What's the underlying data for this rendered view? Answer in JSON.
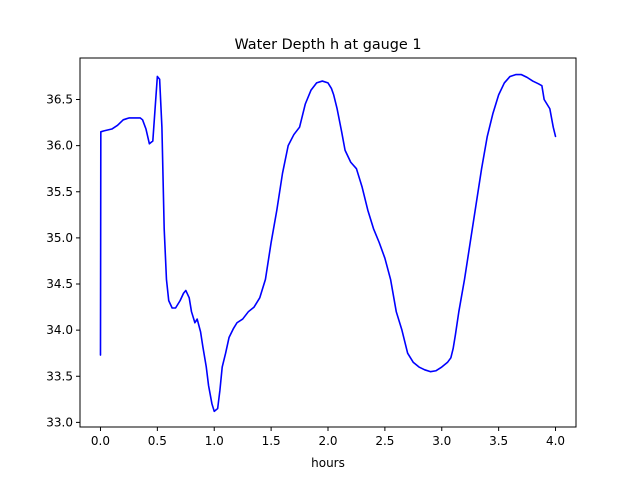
{
  "chart_data": {
    "type": "line",
    "title": "Water Depth h at gauge 1",
    "xlabel": "hours",
    "ylabel": "",
    "xlim": [
      -0.18,
      4.18
    ],
    "ylim": [
      32.95,
      36.95
    ],
    "xticks": [
      {
        "value": 0.0,
        "label": "0.0"
      },
      {
        "value": 0.5,
        "label": "0.5"
      },
      {
        "value": 1.0,
        "label": "1.0"
      },
      {
        "value": 1.5,
        "label": "1.5"
      },
      {
        "value": 2.0,
        "label": "2.0"
      },
      {
        "value": 2.5,
        "label": "2.5"
      },
      {
        "value": 3.0,
        "label": "3.0"
      },
      {
        "value": 3.5,
        "label": "3.5"
      },
      {
        "value": 4.0,
        "label": "4.0"
      }
    ],
    "yticks": [
      {
        "value": 33.0,
        "label": "33.0"
      },
      {
        "value": 33.5,
        "label": "33.5"
      },
      {
        "value": 34.0,
        "label": "34.0"
      },
      {
        "value": 34.5,
        "label": "34.5"
      },
      {
        "value": 35.0,
        "label": "35.0"
      },
      {
        "value": 35.5,
        "label": "35.5"
      },
      {
        "value": 36.0,
        "label": "36.0"
      },
      {
        "value": 36.5,
        "label": "36.5"
      }
    ],
    "grid": false,
    "series": [
      {
        "color": "#0000ff",
        "x": [
          0.0,
          0.003,
          0.03,
          0.1,
          0.15,
          0.2,
          0.25,
          0.3,
          0.35,
          0.37,
          0.4,
          0.43,
          0.46,
          0.48,
          0.5,
          0.52,
          0.54,
          0.56,
          0.58,
          0.6,
          0.63,
          0.66,
          0.7,
          0.73,
          0.75,
          0.78,
          0.8,
          0.83,
          0.85,
          0.88,
          0.9,
          0.93,
          0.95,
          0.98,
          1.0,
          1.03,
          1.05,
          1.07,
          1.1,
          1.13,
          1.17,
          1.2,
          1.25,
          1.3,
          1.35,
          1.4,
          1.45,
          1.5,
          1.55,
          1.6,
          1.65,
          1.7,
          1.75,
          1.8,
          1.85,
          1.9,
          1.95,
          2.0,
          2.03,
          2.05,
          2.08,
          2.12,
          2.15,
          2.2,
          2.25,
          2.3,
          2.35,
          2.4,
          2.45,
          2.5,
          2.55,
          2.6,
          2.65,
          2.7,
          2.75,
          2.8,
          2.85,
          2.9,
          2.95,
          3.0,
          3.05,
          3.08,
          3.1,
          3.12,
          3.15,
          3.2,
          3.25,
          3.3,
          3.35,
          3.4,
          3.45,
          3.5,
          3.55,
          3.6,
          3.65,
          3.7,
          3.75,
          3.8,
          3.85,
          3.88,
          3.9,
          3.95,
          3.98,
          4.0
        ],
        "y": [
          33.73,
          36.15,
          36.16,
          36.18,
          36.22,
          36.28,
          36.3,
          36.3,
          36.3,
          36.28,
          36.18,
          36.02,
          36.05,
          36.4,
          36.75,
          36.72,
          36.2,
          35.1,
          34.55,
          34.32,
          34.24,
          34.24,
          34.32,
          34.4,
          34.43,
          34.35,
          34.2,
          34.08,
          34.12,
          33.98,
          33.82,
          33.6,
          33.4,
          33.2,
          33.12,
          33.15,
          33.35,
          33.6,
          33.75,
          33.92,
          34.02,
          34.08,
          34.12,
          34.2,
          34.25,
          34.35,
          34.55,
          34.95,
          35.3,
          35.7,
          36.0,
          36.12,
          36.2,
          36.45,
          36.6,
          36.68,
          36.7,
          36.68,
          36.62,
          36.55,
          36.4,
          36.15,
          35.95,
          35.82,
          35.75,
          35.55,
          35.3,
          35.1,
          34.95,
          34.78,
          34.55,
          34.2,
          34.0,
          33.75,
          33.65,
          33.6,
          33.57,
          33.55,
          33.56,
          33.6,
          33.65,
          33.7,
          33.8,
          33.95,
          34.2,
          34.55,
          34.95,
          35.35,
          35.75,
          36.1,
          36.35,
          36.55,
          36.68,
          36.75,
          36.77,
          36.77,
          36.74,
          36.7,
          36.67,
          36.65,
          36.5,
          36.4,
          36.2,
          36.1
        ]
      }
    ]
  }
}
